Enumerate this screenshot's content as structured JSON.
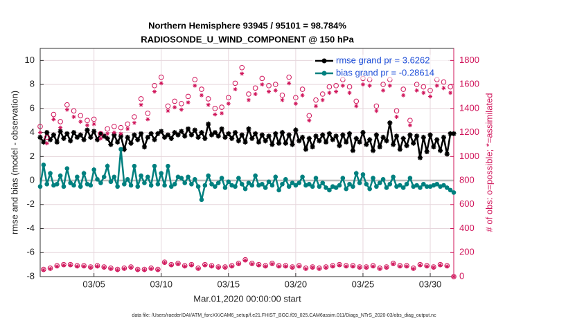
{
  "chart_data": {
    "type": "line",
    "title": "Northern Hemisphere 93945 / 95101 = 98.784%",
    "subtitle": "RADIOSONDE_U_WIND_COMPONENT @ 150 hPa",
    "x_label": "Mar.01,2020 00:00:00 start",
    "y_label": "rmse and bias (model - observation)",
    "y2_label": "# of obs: o=possible; *=assimilated",
    "footer": "data file: /Users/raeder/DAI/ATM_forcXX/CAM6_setup/f.e21.FHIST_BGC.f09_025.CAM6assim.011/Diags_NTrS_2020-03/obs_diag_output.nc",
    "xlim": [
      0,
      30.75
    ],
    "xticks": [
      {
        "value": 4,
        "label": "03/05"
      },
      {
        "value": 9,
        "label": "03/10"
      },
      {
        "value": 14,
        "label": "03/15"
      },
      {
        "value": 19,
        "label": "03/20"
      },
      {
        "value": 24,
        "label": "03/25"
      },
      {
        "value": 29,
        "label": "03/30"
      }
    ],
    "ylim": [
      -8,
      11
    ],
    "yticks": [
      -8,
      -6,
      -4,
      -2,
      0,
      2,
      4,
      6,
      8,
      10
    ],
    "y2lim": [
      0,
      1900
    ],
    "y2ticks": [
      0,
      200,
      400,
      600,
      800,
      1000,
      1200,
      1400,
      1600,
      1800
    ],
    "y2_color": "#d0145a",
    "reference_line": 0,
    "grid": true,
    "legend": "upper right",
    "legend_text_color": "#1f4fd8",
    "x": [
      0,
      0.25,
      0.5,
      0.75,
      1,
      1.25,
      1.5,
      1.75,
      2,
      2.25,
      2.5,
      2.75,
      3,
      3.25,
      3.5,
      3.75,
      4,
      4.25,
      4.5,
      4.75,
      5,
      5.25,
      5.5,
      5.75,
      6,
      6.25,
      6.5,
      6.75,
      7,
      7.25,
      7.5,
      7.75,
      8,
      8.25,
      8.5,
      8.75,
      9,
      9.25,
      9.5,
      9.75,
      10,
      10.25,
      10.5,
      10.75,
      11,
      11.25,
      11.5,
      11.75,
      12,
      12.25,
      12.5,
      12.75,
      13,
      13.25,
      13.5,
      13.75,
      14,
      14.25,
      14.5,
      14.75,
      15,
      15.25,
      15.5,
      15.75,
      16,
      16.25,
      16.5,
      16.75,
      17,
      17.25,
      17.5,
      17.75,
      18,
      18.25,
      18.5,
      18.75,
      19,
      19.25,
      19.5,
      19.75,
      20,
      20.25,
      20.5,
      20.75,
      21,
      21.25,
      21.5,
      21.75,
      22,
      22.25,
      22.5,
      22.75,
      23,
      23.25,
      23.5,
      23.75,
      24,
      24.25,
      24.5,
      24.75,
      25,
      25.25,
      25.5,
      25.75,
      26,
      26.25,
      26.5,
      26.75,
      27,
      27.25,
      27.5,
      27.75,
      28,
      28.25,
      28.5,
      28.75,
      29,
      29.25,
      29.5,
      29.75,
      30,
      30.25,
      30.5,
      30.75
    ],
    "series": [
      {
        "name": "rmse grand pr = 3.6262",
        "color": "#000000",
        "marker": "star",
        "values": [
          3.6,
          3.2,
          4.0,
          3.4,
          3.8,
          3.2,
          4.1,
          3.5,
          3.9,
          3.3,
          4.0,
          3.6,
          3.8,
          3.4,
          4.2,
          3.6,
          4.1,
          3.4,
          3.9,
          3.7,
          3.5,
          3.0,
          3.8,
          3.2,
          3.7,
          2.6,
          3.6,
          3.1,
          3.8,
          3.4,
          3.9,
          2.8,
          3.6,
          3.9,
          3.4,
          3.9,
          4.1,
          3.6,
          3.8,
          3.5,
          4.0,
          3.8,
          4.1,
          3.7,
          4.3,
          3.8,
          4.2,
          3.6,
          4.0,
          3.5,
          4.7,
          3.8,
          4.0,
          3.7,
          4.3,
          3.6,
          3.9,
          3.5,
          4.0,
          3.3,
          3.8,
          3.2,
          4.3,
          3.5,
          3.9,
          3.2,
          3.8,
          3.3,
          3.7,
          3.0,
          3.9,
          3.1,
          4.0,
          3.1,
          3.8,
          3.0,
          4.2,
          3.3,
          3.6,
          2.6,
          3.5,
          2.8,
          3.7,
          3.3,
          3.8,
          3.2,
          3.9,
          3.4,
          3.7,
          2.9,
          3.8,
          3.2,
          3.9,
          2.5,
          3.5,
          3.2,
          4.0,
          3.0,
          3.4,
          2.5,
          3.8,
          2.8,
          3.6,
          3.3,
          4.8,
          3.0,
          3.7,
          2.6,
          3.5,
          2.9,
          3.8,
          3.1,
          3.7,
          1.9,
          3.6,
          2.4,
          3.8,
          2.8,
          3.4,
          2.5,
          3.6,
          2.2,
          3.9,
          3.9
        ]
      },
      {
        "name": "bias grand pr = -0.28614",
        "color": "#00807f",
        "marker": "dot",
        "values": [
          -0.5,
          1.3,
          -0.3,
          0.6,
          -0.4,
          -0.3,
          0.4,
          -0.5,
          1.0,
          -0.2,
          -0.4,
          0.3,
          -0.5,
          0.6,
          -0.3,
          -0.4,
          0.9,
          0.1,
          -0.2,
          0.3,
          1.2,
          -0.1,
          0.3,
          -0.5,
          2.6,
          -0.3,
          0.1,
          -0.4,
          1.2,
          -0.5,
          0.4,
          -0.2,
          0.3,
          -0.4,
          1.2,
          -0.3,
          0.6,
          -0.4,
          1.2,
          -0.5,
          -0.3,
          0.3,
          0.2,
          -0.2,
          0.3,
          -0.3,
          0.1,
          -0.5,
          -1.6,
          -0.4,
          0.4,
          -0.3,
          -0.5,
          -0.2,
          0.2,
          -0.6,
          -0.1,
          -0.4,
          -0.5,
          0.2,
          -0.3,
          -0.7,
          -0.2,
          -0.4,
          0.4,
          -0.4,
          -0.3,
          -0.6,
          -0.1,
          -0.4,
          0.3,
          -0.8,
          -0.3,
          0.1,
          -0.5,
          -0.2,
          -0.4,
          -0.2,
          0.3,
          -0.4,
          -0.3,
          -0.5,
          0.2,
          -0.5,
          -0.2,
          -0.6,
          -0.8,
          -0.5,
          -0.6,
          -0.4,
          0.2,
          -0.7,
          -0.3,
          -0.5,
          0.6,
          -0.2,
          0.5,
          -0.3,
          -0.7,
          0.2,
          -0.5,
          -0.2,
          0.1,
          -0.6,
          -0.3,
          0.3,
          -0.5,
          -0.4,
          -0.6,
          -0.3,
          0.2,
          -0.5,
          -0.4,
          -0.6,
          -0.3,
          -0.5,
          -0.5,
          -0.4,
          -0.3,
          -0.5,
          -0.4,
          -0.6,
          -0.8,
          -1.0
        ]
      },
      {
        "name": "possible",
        "color": "#d0145a",
        "marker": "circle",
        "axis": "y2",
        "values": [
          1250,
          60,
          1160,
          70,
          1350,
          90,
          1290,
          100,
          1430,
          100,
          1380,
          90,
          1340,
          90,
          1300,
          80,
          1310,
          90,
          1190,
          80,
          1230,
          70,
          1250,
          60,
          1240,
          70,
          1270,
          80,
          1330,
          60,
          1480,
          60,
          1360,
          70,
          1590,
          60,
          1660,
          120,
          1420,
          100,
          1460,
          110,
          1440,
          90,
          1500,
          100,
          1640,
          70,
          1560,
          100,
          1480,
          90,
          1400,
          80,
          1410,
          80,
          1490,
          90,
          1610,
          110,
          1740,
          140,
          1520,
          110,
          1570,
          100,
          1650,
          90,
          1590,
          110,
          1600,
          90,
          1510,
          90,
          1660,
          80,
          1490,
          90,
          1560,
          70,
          1340,
          80,
          1470,
          70,
          1520,
          80,
          1580,
          90,
          1590,
          100,
          1640,
          90,
          1580,
          90,
          1460,
          80,
          1650,
          80,
          1640,
          90,
          1420,
          70,
          1600,
          80,
          1640,
          110,
          1380,
          90,
          1560,
          90,
          1300,
          70,
          1600,
          100,
          1580,
          90,
          1550,
          80,
          1640,
          100,
          1620,
          90,
          1580,
          0
        ]
      },
      {
        "name": "assimilated",
        "color": "#d0145a",
        "marker": "asterisk",
        "axis": "y2",
        "values": [
          1200,
          55,
          1110,
          65,
          1310,
          85,
          1240,
          95,
          1390,
          95,
          1330,
          85,
          1290,
          85,
          1260,
          75,
          1270,
          85,
          1150,
          75,
          1190,
          65,
          1200,
          55,
          1190,
          65,
          1230,
          75,
          1280,
          55,
          1430,
          55,
          1310,
          65,
          1540,
          55,
          1610,
          115,
          1380,
          95,
          1410,
          105,
          1390,
          85,
          1450,
          95,
          1590,
          65,
          1510,
          95,
          1430,
          85,
          1350,
          75,
          1360,
          75,
          1440,
          85,
          1560,
          105,
          1690,
          135,
          1470,
          105,
          1520,
          95,
          1600,
          85,
          1540,
          105,
          1550,
          85,
          1470,
          85,
          1610,
          75,
          1440,
          85,
          1510,
          65,
          1300,
          75,
          1420,
          65,
          1470,
          75,
          1530,
          85,
          1540,
          95,
          1590,
          85,
          1530,
          85,
          1420,
          75,
          1600,
          75,
          1590,
          85,
          1380,
          65,
          1550,
          75,
          1590,
          105,
          1330,
          85,
          1510,
          85,
          1260,
          65,
          1550,
          95,
          1530,
          85,
          1500,
          75,
          1590,
          95,
          1570,
          85,
          1530,
          0
        ]
      }
    ]
  }
}
